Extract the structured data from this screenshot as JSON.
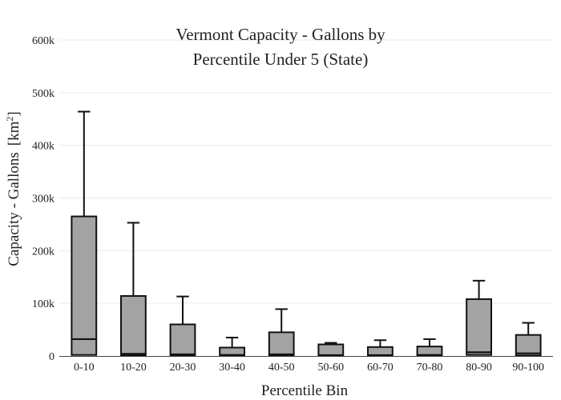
{
  "chart_data": {
    "type": "box",
    "title_lines": [
      "Vermont Capacity - Gallons by",
      "Percentile Under 5 (State)"
    ],
    "xlabel": "Percentile Bin",
    "ylabel": "Capacity - Gallons",
    "ylabel_unit": "[km",
    "ylabel_unit_sup": "2",
    "ylabel_unit_close": "]",
    "ylim": [
      0,
      600000
    ],
    "yticks": [
      {
        "value": 0,
        "label": "0"
      },
      {
        "value": 100000,
        "label": "100k"
      },
      {
        "value": 200000,
        "label": "200k"
      },
      {
        "value": 300000,
        "label": "300k"
      },
      {
        "value": 400000,
        "label": "400k"
      },
      {
        "value": 500000,
        "label": "500k"
      },
      {
        "value": 600000,
        "label": "600k"
      }
    ],
    "grid": true,
    "box_color": "#a3a3a3",
    "line_color": "#111111",
    "categories": [
      "0-10",
      "10-20",
      "20-30",
      "30-40",
      "40-50",
      "50-60",
      "60-70",
      "70-80",
      "80-90",
      "90-100"
    ],
    "boxes": [
      {
        "min": 0,
        "q1": 2000,
        "median": 32000,
        "q3": 265000,
        "max": 464000
      },
      {
        "min": 0,
        "q1": 1000,
        "median": 4000,
        "q3": 114000,
        "max": 253000
      },
      {
        "min": 0,
        "q1": 1000,
        "median": 3000,
        "q3": 60000,
        "max": 113000
      },
      {
        "min": 0,
        "q1": 500,
        "median": 2000,
        "q3": 16000,
        "max": 35000
      },
      {
        "min": 0,
        "q1": 1000,
        "median": 3000,
        "q3": 45000,
        "max": 89000
      },
      {
        "min": 0,
        "q1": 500,
        "median": 1500,
        "q3": 22000,
        "max": 25000
      },
      {
        "min": 0,
        "q1": 500,
        "median": 1500,
        "q3": 17000,
        "max": 30000
      },
      {
        "min": 0,
        "q1": 500,
        "median": 2000,
        "q3": 18000,
        "max": 32000
      },
      {
        "min": 0,
        "q1": 2000,
        "median": 7000,
        "q3": 108000,
        "max": 143000
      },
      {
        "min": 0,
        "q1": 1000,
        "median": 5000,
        "q3": 40000,
        "max": 63000
      }
    ]
  }
}
